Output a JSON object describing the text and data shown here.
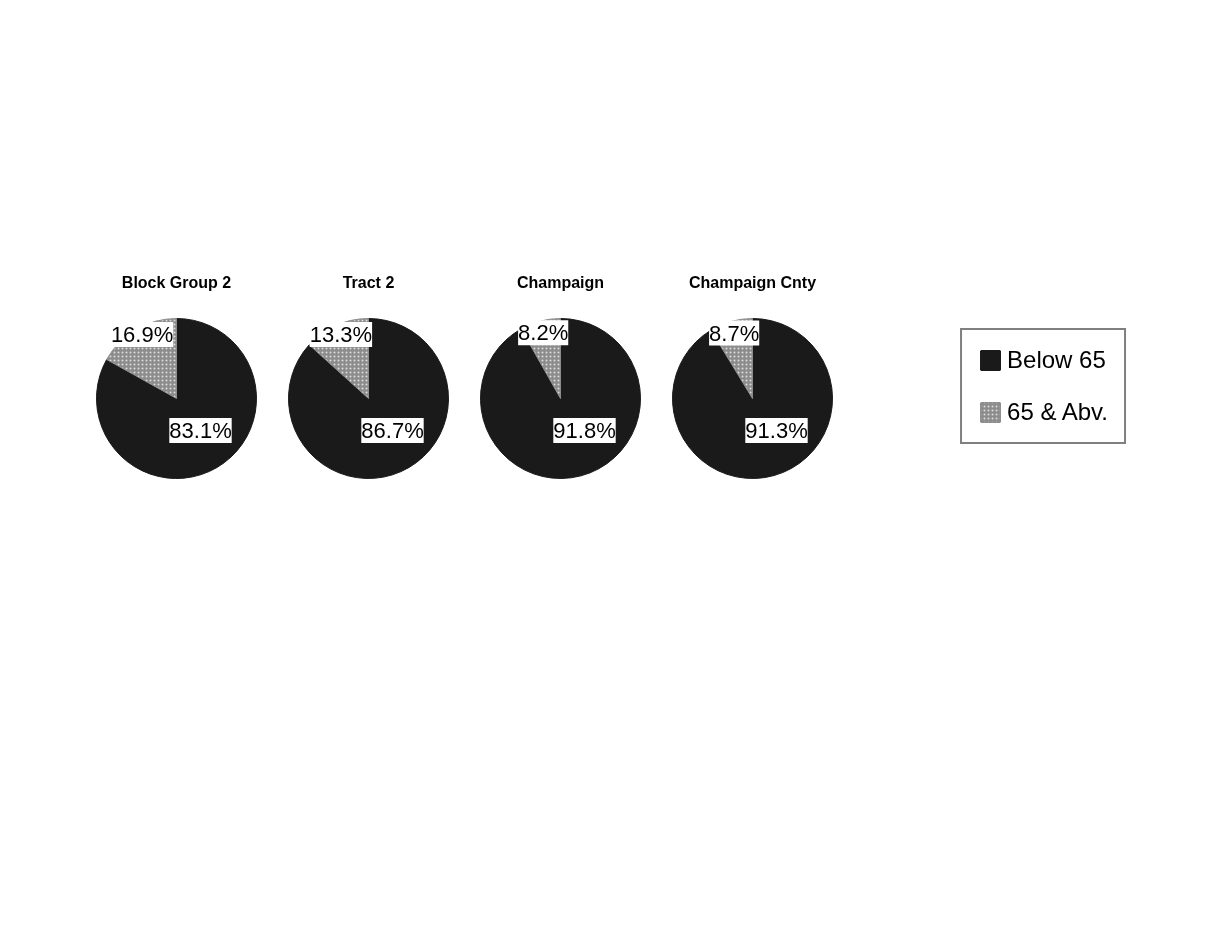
{
  "chart_data": [
    {
      "type": "pie",
      "title": "Block Group 2",
      "categories": [
        "Below 65",
        "65 & Abv."
      ],
      "values": [
        83.1,
        16.9
      ],
      "value_labels": [
        "83.1%",
        "16.9%"
      ],
      "colors": [
        "#1a1a1a",
        "#8c8c8c"
      ],
      "legend": "right"
    },
    {
      "type": "pie",
      "title": "Tract 2",
      "categories": [
        null,
        null
      ],
      "values": [
        86.7,
        13.3
      ],
      "value_labels": [
        "86.7%",
        "13.3%"
      ],
      "colors": [
        "#1a1a1a",
        "#8c8c8c"
      ]
    },
    {
      "type": "pie",
      "title": "Champaign",
      "categories": [
        null,
        null
      ],
      "values": [
        91.8,
        8.2
      ],
      "value_labels": [
        "91.8%",
        "8.2%"
      ],
      "colors": [
        "#1a1a1a",
        "#8c8c8c"
      ]
    },
    {
      "type": "pie",
      "title": "Champaign Cnty",
      "categories": [
        null,
        null
      ],
      "values": [
        91.3,
        8.7
      ],
      "value_labels": [
        "91.3%",
        "8.7%"
      ],
      "colors": [
        "#1a1a1a",
        "#8c8c8c"
      ]
    }
  ]
}
